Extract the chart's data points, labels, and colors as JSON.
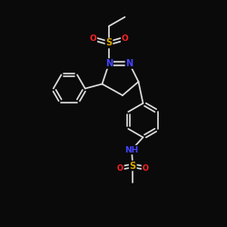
{
  "bg_color": "#0a0a0a",
  "bond_color": "#e0e0e0",
  "atom_colors": {
    "N": "#4444ff",
    "O": "#ff2222",
    "S": "#ddaa00",
    "C": "#e0e0e0",
    "H": "#e0e0e0"
  },
  "bond_width": 1.2,
  "figsize": [
    2.5,
    2.5
  ],
  "dpi": 100
}
